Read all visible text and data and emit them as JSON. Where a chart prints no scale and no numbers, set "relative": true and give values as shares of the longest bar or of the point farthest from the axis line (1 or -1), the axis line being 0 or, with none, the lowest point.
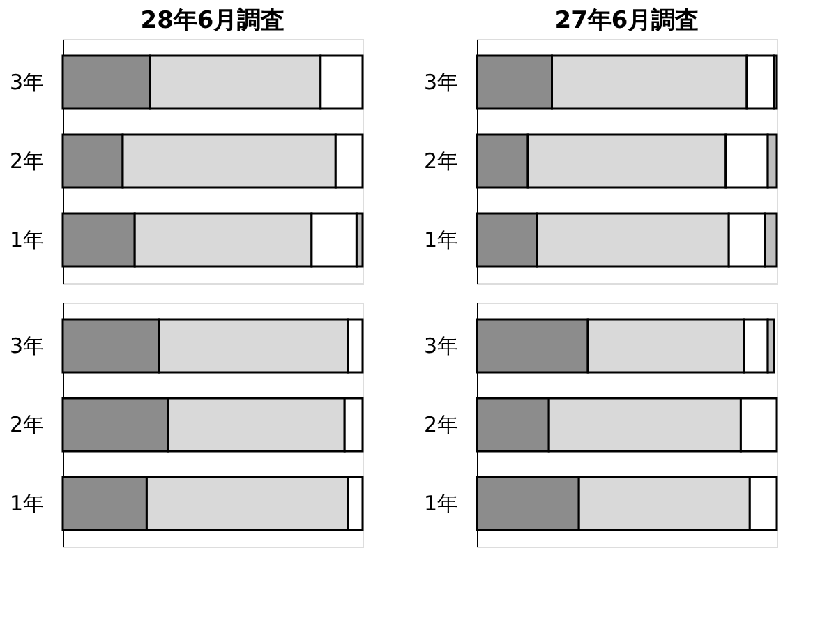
{
  "chart_data": [
    {
      "type": "bar",
      "orientation": "horizontal",
      "stacked": true,
      "relative": true,
      "title": "28年6月調査",
      "categories": [
        "3年",
        "2年",
        "1年"
      ],
      "series": [
        {
          "color": "#8c8c8c",
          "values": [
            0.29,
            0.2,
            0.24
          ]
        },
        {
          "color": "#d9d9d9",
          "values": [
            0.57,
            0.71,
            0.59
          ]
        },
        {
          "color": "#ffffff",
          "values": [
            0.14,
            0.09,
            0.15
          ]
        },
        {
          "color": "#bfbfbf",
          "values": [
            null,
            null,
            0.02
          ]
        }
      ],
      "legend": false,
      "grid": false
    },
    {
      "type": "bar",
      "orientation": "horizontal",
      "stacked": true,
      "relative": true,
      "title": "27年6月調査",
      "categories": [
        "3年",
        "2年",
        "1年"
      ],
      "series": [
        {
          "color": "#8c8c8c",
          "values": [
            0.25,
            0.17,
            0.2
          ]
        },
        {
          "color": "#d9d9d9",
          "values": [
            0.65,
            0.66,
            0.64
          ]
        },
        {
          "color": "#ffffff",
          "values": [
            0.09,
            0.14,
            0.12
          ]
        },
        {
          "color": "#bfbfbf",
          "values": [
            0.01,
            0.03,
            0.04
          ]
        }
      ],
      "legend": false,
      "grid": false
    },
    {
      "type": "bar",
      "orientation": "horizontal",
      "stacked": true,
      "relative": true,
      "categories": [
        "3年",
        "2年",
        "1年"
      ],
      "series": [
        {
          "color": "#8c8c8c",
          "values": [
            0.32,
            0.35,
            0.28
          ]
        },
        {
          "color": "#d9d9d9",
          "values": [
            0.63,
            0.59,
            0.67
          ]
        },
        {
          "color": "#ffffff",
          "values": [
            0.05,
            0.06,
            0.05
          ]
        }
      ],
      "legend": false,
      "grid": false
    },
    {
      "type": "bar",
      "orientation": "horizontal",
      "stacked": true,
      "relative": true,
      "categories": [
        "3年",
        "2年",
        "1年"
      ],
      "series": [
        {
          "color": "#8c8c8c",
          "values": [
            0.37,
            0.24,
            0.34
          ]
        },
        {
          "color": "#d9d9d9",
          "values": [
            0.52,
            0.64,
            0.57
          ]
        },
        {
          "color": "#ffffff",
          "values": [
            0.08,
            0.12,
            0.09
          ]
        },
        {
          "color": "#bfbfbf",
          "values": [
            0.02,
            null,
            null
          ]
        }
      ],
      "legend": false,
      "grid": false
    }
  ]
}
